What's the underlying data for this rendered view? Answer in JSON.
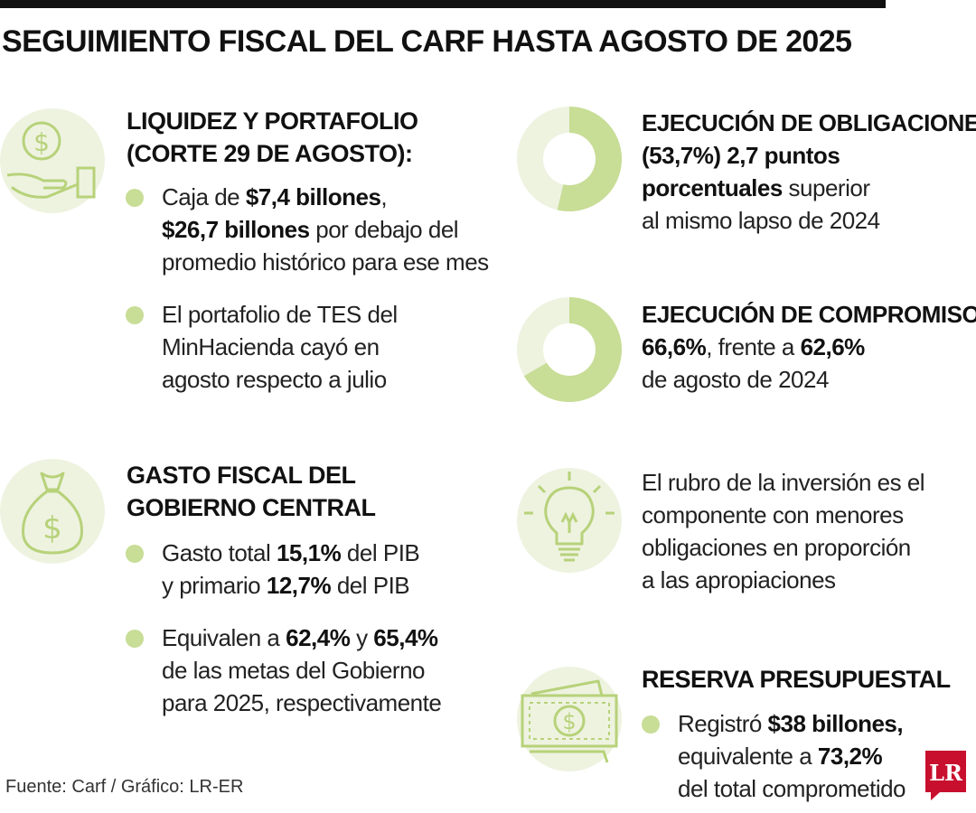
{
  "title": "SEGUIMIENTO FISCAL DEL CARF HASTA AGOSTO DE 2025",
  "colors": {
    "accent": "#c8dd96",
    "icon_bg": "#eef3e0",
    "icon_line": "#b7d27a",
    "logo_red": "#c8102e"
  },
  "left": {
    "liquidez": {
      "icon": "hand-coin-icon",
      "heading_1": "LIQUIDEZ Y PORTAFOLIO",
      "heading_2": "(CORTE 29 DE AGOSTO):",
      "b1": {
        "l1_a": "Caja de ",
        "l1_b": "$7,4 billones",
        "l1_c": ",",
        "l2_a": "$26,7 billones",
        "l2_b": " por debajo del",
        "l3": "promedio histórico para ese mes"
      },
      "b2": {
        "l1": "El portafolio de TES del",
        "l2": "MinHacienda cayó en",
        "l3": "agosto respecto a julio"
      }
    },
    "gasto": {
      "icon": "money-bag-icon",
      "heading_1": "GASTO FISCAL DEL",
      "heading_2": "GOBIERNO CENTRAL",
      "b1": {
        "l1_a": "Gasto total ",
        "l1_b": "15,1%",
        "l1_c": " del PIB",
        "l2_a": "y primario ",
        "l2_b": "12,7%",
        "l2_c": " del PIB"
      },
      "b2": {
        "l1_a": "Equivalen a ",
        "l1_b": "62,4%",
        "l1_c": " y ",
        "l1_d": "65,4%",
        "l2": "de las metas del Gobierno",
        "l3": "para 2025, respectivamente"
      }
    }
  },
  "right": {
    "obligaciones": {
      "icon": "donut-chart-icon",
      "donut_fraction": 0.537,
      "heading": "EJECUCIÓN DE OBLIGACIONES:",
      "l1": "(53,7%) 2,7 puntos",
      "l2_a": "porcentuales",
      "l2_b": " superior",
      "l3": "al mismo lapso de 2024"
    },
    "compromisos": {
      "icon": "donut-chart-icon",
      "donut_fraction": 0.666,
      "heading": "EJECUCIÓN DE COMPROMISOS:",
      "l1_a": "66,6%",
      "l1_b": ", frente a ",
      "l1_c": "62,6%",
      "l2": "de agosto de 2024"
    },
    "inversion": {
      "icon": "lightbulb-icon",
      "l1": "El rubro de la inversión es el",
      "l2": "componente con menores",
      "l3": "obligaciones en proporción",
      "l4": "a las apropiaciones"
    },
    "reserva": {
      "icon": "banknote-icon",
      "heading": "RESERVA PRESUPUESTAL",
      "b1": {
        "l1_a": "Registró ",
        "l1_b": "$38 billones,",
        "l2_a": "equivalente a ",
        "l2_b": "73,2%",
        "l3": "del total comprometido"
      }
    }
  },
  "source": "Fuente: Carf / Gráfico: LR-ER",
  "logo": {
    "icon": "lr-logo-icon",
    "text": "LR"
  }
}
